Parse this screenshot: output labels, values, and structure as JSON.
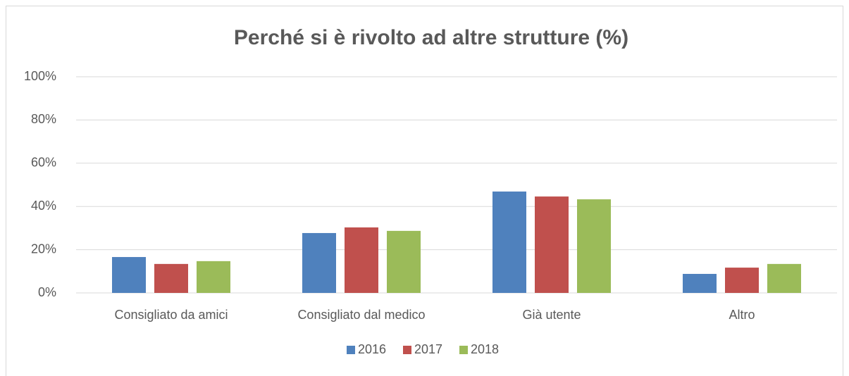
{
  "chart_data": {
    "type": "bar",
    "title": "Perché si è rivolto ad altre strutture (%)",
    "categories": [
      "Consigliato da amici",
      "Consigliato dal medico",
      "Già utente",
      "Altro"
    ],
    "series": [
      {
        "name": "2016",
        "color": "#4f81bd",
        "values": [
          16.6,
          27.7,
          46.9,
          8.8
        ]
      },
      {
        "name": "2017",
        "color": "#c0504d",
        "values": [
          13.4,
          30.3,
          44.6,
          11.7
        ]
      },
      {
        "name": "2018",
        "color": "#9bbb59",
        "values": [
          14.7,
          28.7,
          43.3,
          13.4
        ]
      }
    ],
    "ylim": [
      0,
      100
    ],
    "yticks": [
      {
        "value": 0,
        "label": "0%"
      },
      {
        "value": 20,
        "label": "20%"
      },
      {
        "value": 40,
        "label": "40%"
      },
      {
        "value": 60,
        "label": "60%"
      },
      {
        "value": 80,
        "label": "80%"
      },
      {
        "value": 100,
        "label": "100%"
      }
    ],
    "grid": true,
    "legend": "bottom"
  }
}
